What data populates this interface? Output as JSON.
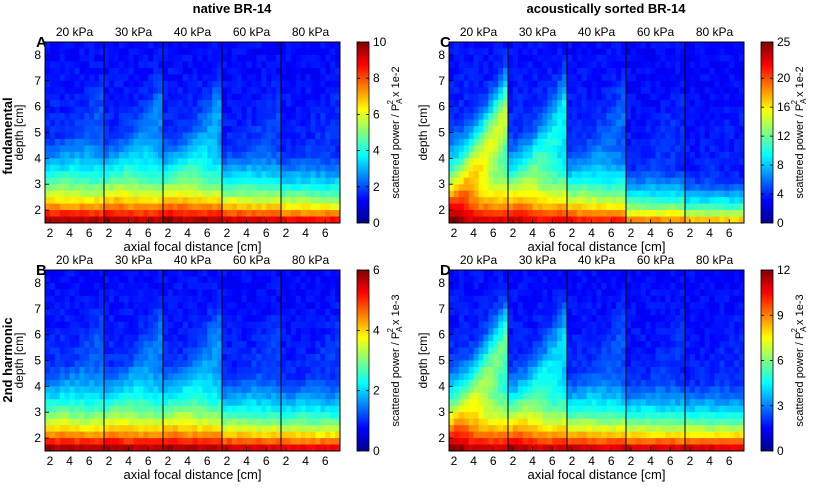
{
  "group_titles": {
    "left": "native BR-14",
    "right": "acoustically sorted BR-14"
  },
  "row_labels": {
    "top": "fundamental",
    "bottom": "2nd harmonic"
  },
  "pressures": [
    "20 kPa",
    "30 kPa",
    "40 kPa",
    "60 kPa",
    "80 kPa"
  ],
  "xlabel": "axial focal distance [cm]",
  "ylabel": "depth [cm]",
  "colorbar_label": {
    "prefix": "scattered power / P",
    "sub": "A",
    "sup": "2"
  },
  "chart_data": [
    {
      "type": "heatmap",
      "panel": "A",
      "group": "native BR-14",
      "row": "fundamental",
      "x_ticks": [
        "2",
        "4",
        "6"
      ],
      "y_ticks": [
        "2",
        "3",
        "4",
        "5",
        "6",
        "7",
        "8"
      ],
      "xlim": [
        1.5,
        7.5
      ],
      "ylim": [
        1.5,
        8.5
      ],
      "colorbar": {
        "min": 0,
        "max": 10,
        "ticks": [
          "0",
          "2",
          "4",
          "6",
          "8",
          "10"
        ],
        "scale_label": "x 1e-2"
      },
      "subpanels": [
        {
          "pressure": "20 kPa",
          "base": 0.95,
          "decay": 0.72,
          "tail": 0.35,
          "bulge": 0.1
        },
        {
          "pressure": "30 kPa",
          "base": 0.95,
          "decay": 0.72,
          "tail": 0.35,
          "bulge": 0.2
        },
        {
          "pressure": "40 kPa",
          "base": 0.95,
          "decay": 0.72,
          "tail": 0.35,
          "bulge": 0.25
        },
        {
          "pressure": "60 kPa",
          "base": 0.92,
          "decay": 0.6,
          "tail": 0.25,
          "bulge": 0.08
        },
        {
          "pressure": "80 kPa",
          "base": 0.88,
          "decay": 0.55,
          "tail": 0.22,
          "bulge": 0.05
        }
      ]
    },
    {
      "type": "heatmap",
      "panel": "B",
      "group": "native BR-14",
      "row": "2nd harmonic",
      "x_ticks": [
        "2",
        "4",
        "6"
      ],
      "y_ticks": [
        "2",
        "3",
        "4",
        "5",
        "6",
        "7",
        "8"
      ],
      "xlim": [
        1.5,
        7.5
      ],
      "ylim": [
        1.5,
        8.5
      ],
      "colorbar": {
        "min": 0,
        "max": 6,
        "ticks": [
          "0",
          "2",
          "4",
          "6"
        ],
        "scale_label": "x 1e-3"
      },
      "subpanels": [
        {
          "pressure": "20 kPa",
          "base": 0.95,
          "decay": 0.72,
          "tail": 0.35,
          "bulge": 0.1
        },
        {
          "pressure": "30 kPa",
          "base": 0.95,
          "decay": 0.72,
          "tail": 0.35,
          "bulge": 0.18
        },
        {
          "pressure": "40 kPa",
          "base": 0.95,
          "decay": 0.72,
          "tail": 0.35,
          "bulge": 0.22
        },
        {
          "pressure": "60 kPa",
          "base": 0.92,
          "decay": 0.6,
          "tail": 0.25,
          "bulge": 0.08
        },
        {
          "pressure": "80 kPa",
          "base": 0.9,
          "decay": 0.58,
          "tail": 0.22,
          "bulge": 0.06
        }
      ]
    },
    {
      "type": "heatmap",
      "panel": "C",
      "group": "acoustically sorted BR-14",
      "row": "fundamental",
      "x_ticks": [
        "2",
        "4",
        "6"
      ],
      "y_ticks": [
        "2",
        "3",
        "4",
        "5",
        "6",
        "7",
        "8"
      ],
      "xlim": [
        1.5,
        7.5
      ],
      "ylim": [
        1.5,
        8.5
      ],
      "colorbar": {
        "min": 0,
        "max": 25,
        "ticks": [
          "0",
          "4",
          "8",
          "12",
          "16",
          "20",
          "25"
        ],
        "scale_label": "x 1e-2"
      },
      "subpanels": [
        {
          "pressure": "20 kPa",
          "base": 0.9,
          "decay": 0.9,
          "tail": 0.45,
          "bulge": 0.7
        },
        {
          "pressure": "30 kPa",
          "base": 0.88,
          "decay": 0.78,
          "tail": 0.4,
          "bulge": 0.4
        },
        {
          "pressure": "40 kPa",
          "base": 0.85,
          "decay": 0.65,
          "tail": 0.3,
          "bulge": 0.15
        },
        {
          "pressure": "60 kPa",
          "base": 0.75,
          "decay": 0.45,
          "tail": 0.18,
          "bulge": 0.05
        },
        {
          "pressure": "80 kPa",
          "base": 0.68,
          "decay": 0.38,
          "tail": 0.12,
          "bulge": 0.03
        }
      ]
    },
    {
      "type": "heatmap",
      "panel": "D",
      "group": "acoustically sorted BR-14",
      "row": "2nd harmonic",
      "x_ticks": [
        "2",
        "4",
        "6"
      ],
      "y_ticks": [
        "2",
        "3",
        "4",
        "5",
        "6",
        "7",
        "8"
      ],
      "xlim": [
        1.5,
        7.5
      ],
      "ylim": [
        1.5,
        8.5
      ],
      "colorbar": {
        "min": 0,
        "max": 12,
        "ticks": [
          "0",
          "3",
          "6",
          "9",
          "12"
        ],
        "scale_label": "x 1e-3"
      },
      "subpanels": [
        {
          "pressure": "20 kPa",
          "base": 0.92,
          "decay": 0.85,
          "tail": 0.4,
          "bulge": 0.55
        },
        {
          "pressure": "30 kPa",
          "base": 0.92,
          "decay": 0.75,
          "tail": 0.35,
          "bulge": 0.35
        },
        {
          "pressure": "40 kPa",
          "base": 0.92,
          "decay": 0.62,
          "tail": 0.28,
          "bulge": 0.12
        },
        {
          "pressure": "60 kPa",
          "base": 0.92,
          "decay": 0.55,
          "tail": 0.22,
          "bulge": 0.05
        },
        {
          "pressure": "80 kPa",
          "base": 0.92,
          "decay": 0.52,
          "tail": 0.2,
          "bulge": 0.04
        }
      ]
    }
  ]
}
